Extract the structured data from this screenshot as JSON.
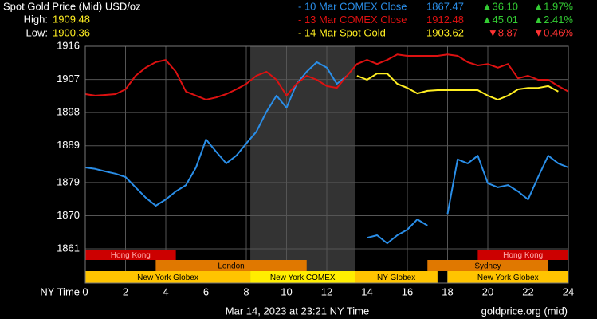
{
  "chart_data": {
    "type": "line",
    "title": "Spot Gold Price (Mid) USD/oz",
    "high_label": "High:",
    "high": "1909.48",
    "low_label": "Low:",
    "low": "1900.36",
    "x_axis_label": "NY Time",
    "footer": "Mar 14, 2023 at 23:21 NY Time",
    "source": "goldprice.org (mid)",
    "xlim": [
      0,
      24
    ],
    "xticks": [
      0,
      2,
      4,
      6,
      8,
      10,
      12,
      14,
      16,
      18,
      20,
      22,
      24
    ],
    "ylim": [
      1851.7,
      1916
    ],
    "yticks": [
      1861,
      1870,
      1879,
      1889,
      1898,
      1907,
      1916
    ],
    "grid": true,
    "x": [
      0,
      0.5,
      1,
      1.5,
      2,
      2.5,
      3,
      3.5,
      4,
      4.5,
      5,
      5.5,
      6,
      6.5,
      7,
      7.5,
      8,
      8.5,
      9,
      9.5,
      10,
      10.5,
      11,
      11.5,
      12,
      12.5,
      13,
      13.5,
      14,
      14.5,
      15,
      15.5,
      16,
      16.5,
      17,
      17.5,
      18,
      18.5,
      19,
      19.5,
      20,
      20.5,
      21,
      21.5,
      22,
      22.5,
      23,
      23.5,
      24
    ],
    "series": [
      {
        "name": "- 10 Mar COMEX Close",
        "color": "#2a8ee8",
        "close": "1867.47",
        "change": "▲36.10",
        "change_pct": "▲1.97%",
        "change_color": "#33cc33",
        "values": [
          1883.1,
          1882.7,
          1882.0,
          1881.4,
          1880.5,
          1877.7,
          1874.9,
          1872.7,
          1874.4,
          1876.6,
          1878.3,
          1883.1,
          1890.7,
          1887.4,
          1884.2,
          1886.3,
          1889.6,
          1892.8,
          1898.2,
          1902.6,
          1899.3,
          1905.8,
          1909.1,
          1911.7,
          1910.2,
          1905.8,
          1908.0,
          null,
          1864.0,
          1864.7,
          1862.5,
          1864.7,
          1866.2,
          1869.0,
          1867.3,
          null,
          1870.5,
          1885.3,
          1884.2,
          1886.3,
          1878.8,
          1877.7,
          1878.3,
          1876.6,
          1874.4,
          1880.5,
          1886.3,
          1884.2,
          1883.1
        ]
      },
      {
        "name": "- 13 Mar COMEX Close",
        "color": "#dd1111",
        "close": "1912.48",
        "change": "▲45.01",
        "change_pct": "▲2.41%",
        "change_color": "#33cc33",
        "values": [
          1903.0,
          1902.6,
          1902.8,
          1903.0,
          1904.3,
          1908.0,
          1910.2,
          1911.7,
          1912.3,
          1909.1,
          1903.7,
          1902.6,
          1901.5,
          1902.1,
          1903.0,
          1904.3,
          1905.8,
          1908.0,
          1909.1,
          1906.9,
          1902.6,
          1905.8,
          1908.0,
          1906.9,
          1905.2,
          1904.7,
          1908.0,
          1911.2,
          1912.3,
          1911.2,
          1912.3,
          1913.8,
          1913.4,
          1913.4,
          1913.4,
          1913.4,
          1913.8,
          1913.4,
          1911.7,
          1910.8,
          1911.2,
          1910.2,
          1911.2,
          1907.3,
          1908.0,
          1906.9,
          1906.9,
          1905.2,
          1903.7
        ]
      },
      {
        "name": "- 14 Mar Spot Gold",
        "color": "#ffee22",
        "close": "1903.62",
        "change": "▼8.87",
        "change_pct": "▼0.46%",
        "change_color": "#ff3333",
        "values": [
          null,
          null,
          null,
          null,
          null,
          null,
          null,
          null,
          null,
          null,
          null,
          null,
          null,
          null,
          null,
          null,
          null,
          null,
          null,
          null,
          null,
          null,
          null,
          null,
          null,
          null,
          null,
          1908.0,
          1906.9,
          1908.6,
          1908.6,
          1905.8,
          1904.7,
          1903.2,
          1903.9,
          1904.1,
          1904.1,
          1904.1,
          1904.1,
          1904.1,
          1902.6,
          1901.5,
          1902.6,
          1904.3,
          1904.7,
          1904.7,
          1905.2,
          1903.7,
          null
        ]
      }
    ],
    "session_rows": [
      [
        {
          "label": "Hong Kong",
          "start": 0,
          "end": 4.5,
          "color": "#cc0000"
        },
        {
          "label": "Hong Kong",
          "start": 19.5,
          "end": 24,
          "color": "#cc0000"
        }
      ],
      [
        {
          "label": "London",
          "start": 3.5,
          "end": 11,
          "color": "#e07800"
        },
        {
          "label": "Sydney",
          "start": 17,
          "end": 23,
          "color": "#e07800"
        }
      ],
      [
        {
          "label": "New York Globex",
          "start": 0,
          "end": 8.2,
          "color": "#ffc400"
        },
        {
          "label": "New York COMEX",
          "start": 8.2,
          "end": 13.4,
          "color": "#ffee00"
        },
        {
          "label": "NY Globex",
          "start": 13.4,
          "end": 17.5,
          "color": "#ffc400"
        },
        {
          "label": "New York Globex",
          "start": 18,
          "end": 24,
          "color": "#ffc400"
        }
      ]
    ]
  }
}
